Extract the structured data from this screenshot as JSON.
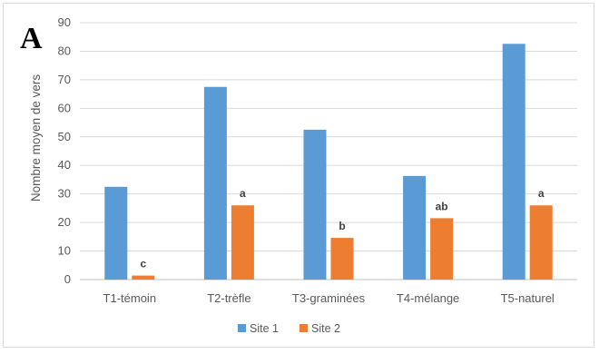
{
  "panel_label": "A",
  "chart_data": {
    "type": "bar",
    "title": "",
    "xlabel": "",
    "ylabel": "Nombre moyen de vers",
    "ylim": [
      0,
      90
    ],
    "yticks": [
      0,
      10,
      20,
      30,
      40,
      50,
      60,
      70,
      80,
      90
    ],
    "grid": true,
    "legend_position": "bottom",
    "categories": [
      "T1-témoin",
      "T2-trèfle",
      "T3-graminées",
      "T4-mélange",
      "T5-naturel"
    ],
    "series": [
      {
        "name": "Site 1",
        "color": "#5b9bd5",
        "values": [
          32.5,
          67.5,
          52.5,
          36.3,
          82.6
        ],
        "labels": [
          "",
          "",
          "",
          "",
          ""
        ]
      },
      {
        "name": "Site 2",
        "color": "#ed7d31",
        "values": [
          1.4,
          26.0,
          14.6,
          21.5,
          26.0
        ],
        "labels": [
          "c",
          "a",
          "b",
          "ab",
          "a"
        ]
      }
    ]
  }
}
